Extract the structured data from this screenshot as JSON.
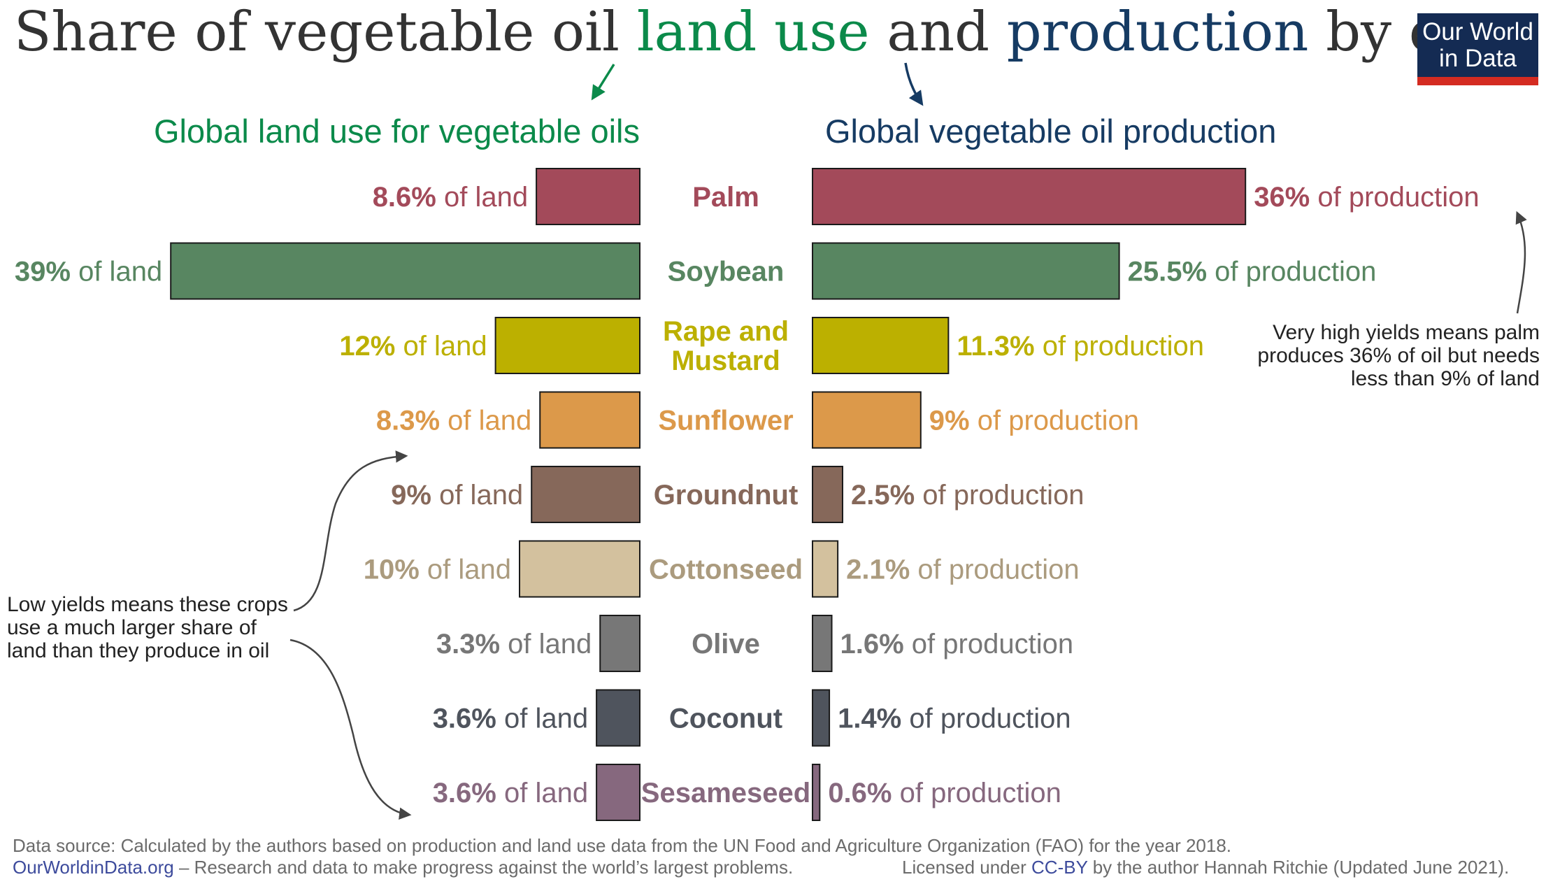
{
  "title": {
    "part1": "Share of vegetable oil ",
    "highlight_land": "land use",
    "part2": " and ",
    "highlight_production": "production",
    "part3": " by crop"
  },
  "logo": {
    "line1": "Our World",
    "line2": "in Data"
  },
  "subheadings": {
    "land": "Global land use for vegetable oils",
    "production": "Global vegetable oil production"
  },
  "chart_data": {
    "type": "bar",
    "categories": [
      "Palm",
      "Soybean",
      "Rape and Mustard",
      "Sunflower",
      "Groundnut",
      "Cottonseed",
      "Olive",
      "Coconut",
      "Sesameseed"
    ],
    "category_lines": [
      [
        "Palm"
      ],
      [
        "Soybean"
      ],
      [
        "Rape and",
        "Mustard"
      ],
      [
        "Sunflower"
      ],
      [
        "Groundnut"
      ],
      [
        "Cottonseed"
      ],
      [
        "Olive"
      ],
      [
        "Coconut"
      ],
      [
        "Sesameseed"
      ]
    ],
    "series": [
      {
        "name": "Global land use for vegetable oils",
        "values": [
          8.6,
          39,
          12,
          8.3,
          9,
          10,
          3.3,
          3.6,
          3.6
        ],
        "labels": [
          "8.6%",
          "39%",
          "12%",
          "8.3%",
          "9%",
          "10%",
          "3.3%",
          "3.6%",
          "3.6%"
        ],
        "suffix": " of land"
      },
      {
        "name": "Global vegetable oil production",
        "values": [
          36,
          25.5,
          11.3,
          9,
          2.5,
          2.1,
          1.6,
          1.4,
          0.6
        ],
        "labels": [
          "36%",
          "25.5%",
          "11.3%",
          "9%",
          "2.5%",
          "2.1%",
          "1.6%",
          "1.4%",
          "0.6%"
        ],
        "suffix": " of production"
      }
    ],
    "colors": [
      "#a34a5a",
      "#588661",
      "#bcb000",
      "#dc994a",
      "#86685a",
      "#d3c19e",
      "#777777",
      "#4f545d",
      "#86687e"
    ],
    "label_colors": [
      "#a34a5a",
      "#588661",
      "#bcb000",
      "#dc994a",
      "#86685a",
      "#ab9b7e",
      "#777777",
      "#4f545d",
      "#86687e"
    ],
    "unit": "%"
  },
  "annotations": {
    "right": [
      "Very high yields means palm",
      "produces 36% of oil but needs",
      "less than 9% of land"
    ],
    "left": [
      "Low yields means these crops",
      "use a much larger share of",
      "land than they produce in oil"
    ]
  },
  "footer": {
    "source": "Data source: Calculated by the authors based on production and land use data from the UN Food and Agriculture Organization (FAO) for the year 2018.",
    "site": "OurWorldinData.org",
    "tagline": " – Research and data to make progress against the world’s largest problems.",
    "license_prefix": "Licensed under ",
    "license_link": "CC-BY",
    "license_suffix": " by the author Hannah Ritchie (Updated June 2021)."
  }
}
